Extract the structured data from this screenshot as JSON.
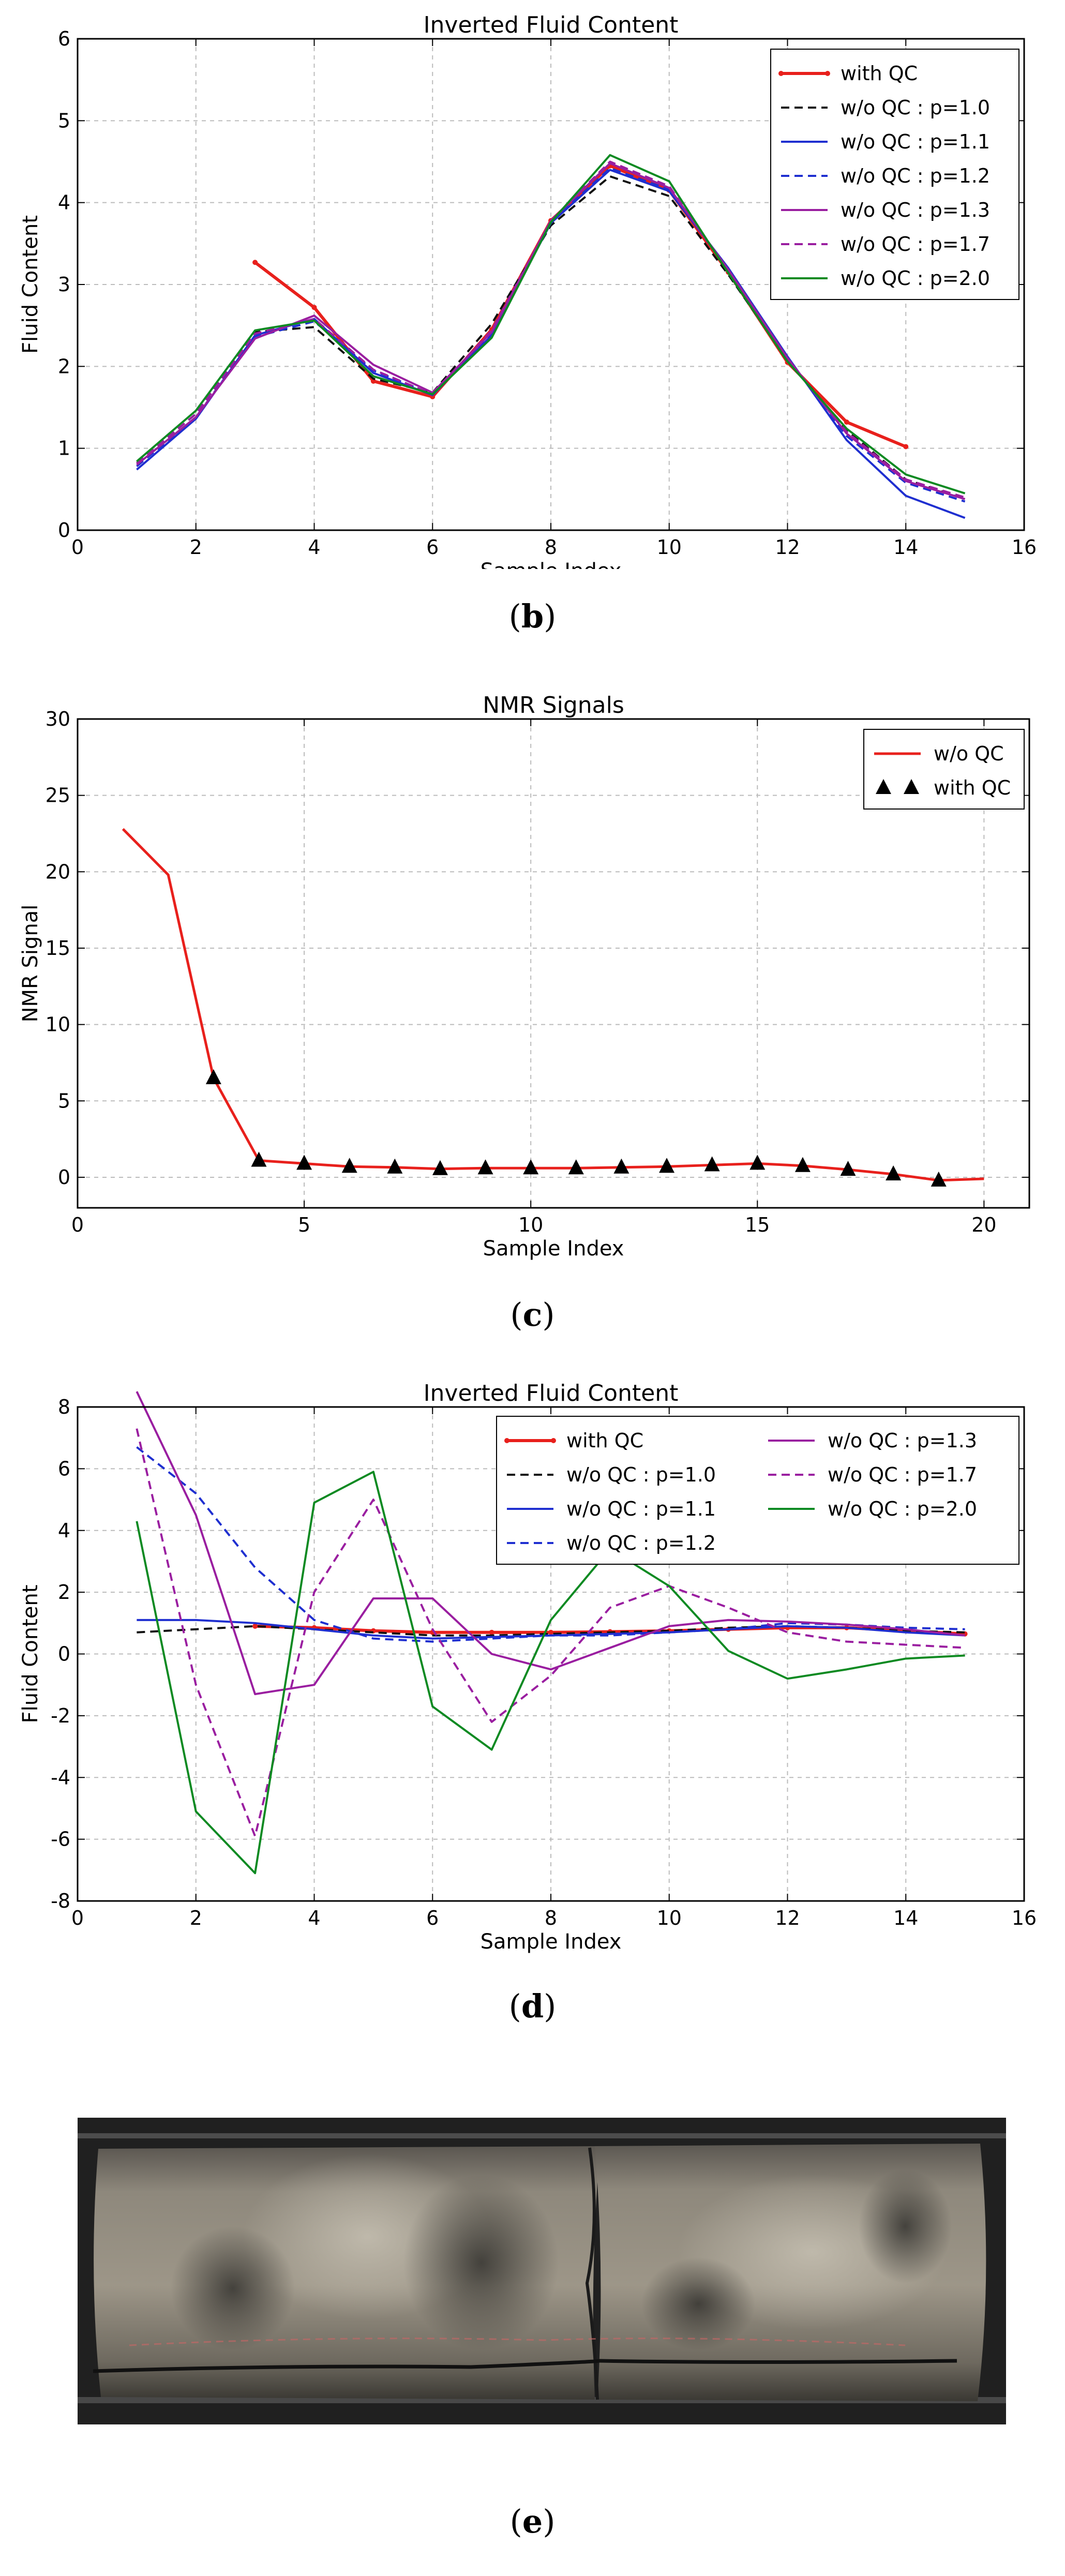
{
  "colors": {
    "red": "#e8201c",
    "black": "#111111",
    "blue": "#1f2fd0",
    "purple": "#9a1ea0",
    "green": "#0d8a22"
  },
  "panels": {
    "b": "b",
    "c": "c",
    "d": "d",
    "e": "e"
  },
  "chart_data": [
    {
      "id": "b",
      "type": "line",
      "title": "Inverted Fluid Content",
      "xlabel": "Sample Index",
      "ylabel": "Fluid Content",
      "xlim": [
        0,
        16
      ],
      "ylim": [
        0,
        6
      ],
      "xticks": [
        0,
        2,
        4,
        6,
        8,
        10,
        12,
        14,
        16
      ],
      "yticks": [
        0,
        1,
        2,
        3,
        4,
        5,
        6
      ],
      "grid": true,
      "legend_position": "top-right",
      "series": [
        {
          "name": "with QC",
          "color": "#e8201c",
          "dash": "solid",
          "marker": "dot",
          "width": 6,
          "x": [
            3,
            4,
            5,
            6,
            7,
            8,
            9,
            10,
            11,
            12,
            13,
            14
          ],
          "y": [
            3.27,
            2.72,
            1.82,
            1.63,
            2.45,
            3.78,
            4.45,
            4.15,
            3.15,
            2.05,
            1.32,
            1.02
          ]
        },
        {
          "name": "w/o QC : p=1.0",
          "color": "#111111",
          "dash": "dashed",
          "width": 4,
          "x": [
            1,
            2,
            3,
            4,
            5,
            6,
            7,
            8,
            9,
            10,
            11,
            12,
            13,
            14,
            15
          ],
          "y": [
            0.82,
            1.42,
            2.42,
            2.48,
            1.85,
            1.68,
            2.52,
            3.72,
            4.32,
            4.08,
            3.12,
            2.08,
            1.22,
            0.62,
            0.38
          ]
        },
        {
          "name": "w/o QC : p=1.1",
          "color": "#1f2fd0",
          "dash": "solid",
          "width": 4,
          "x": [
            1,
            2,
            3,
            4,
            5,
            6,
            7,
            8,
            9,
            10,
            11,
            12,
            13,
            14,
            15
          ],
          "y": [
            0.74,
            1.36,
            2.38,
            2.58,
            1.92,
            1.65,
            2.38,
            3.75,
            4.4,
            4.14,
            3.2,
            2.12,
            1.1,
            0.42,
            0.15
          ]
        },
        {
          "name": "w/o QC : p=1.2",
          "color": "#1f2fd0",
          "dash": "dashed",
          "width": 4,
          "x": [
            1,
            2,
            3,
            4,
            5,
            6,
            7,
            8,
            9,
            10,
            11,
            12,
            13,
            14,
            15
          ],
          "y": [
            0.78,
            1.38,
            2.36,
            2.55,
            1.95,
            1.66,
            2.4,
            3.76,
            4.42,
            4.16,
            3.18,
            2.1,
            1.15,
            0.58,
            0.35
          ]
        },
        {
          "name": "w/o QC : p=1.3",
          "color": "#9a1ea0",
          "dash": "solid",
          "width": 4,
          "x": [
            1,
            2,
            3,
            4,
            5,
            6,
            7,
            8,
            9,
            10,
            11,
            12,
            13,
            14,
            15
          ],
          "y": [
            0.8,
            1.38,
            2.34,
            2.62,
            2.02,
            1.68,
            2.42,
            3.78,
            4.48,
            4.18,
            3.18,
            2.1,
            1.18,
            0.6,
            0.38
          ]
        },
        {
          "name": "w/o QC : p=1.7",
          "color": "#9a1ea0",
          "dash": "dashed",
          "width": 4,
          "x": [
            1,
            2,
            3,
            4,
            5,
            6,
            7,
            8,
            9,
            10,
            11,
            12,
            13,
            14,
            15
          ],
          "y": [
            0.82,
            1.42,
            2.4,
            2.58,
            1.96,
            1.66,
            2.44,
            3.78,
            4.5,
            4.2,
            3.16,
            2.08,
            1.2,
            0.62,
            0.4
          ]
        },
        {
          "name": "w/o QC : p=2.0",
          "color": "#0d8a22",
          "dash": "solid",
          "width": 4,
          "x": [
            1,
            2,
            3,
            4,
            5,
            6,
            7,
            8,
            9,
            10,
            11,
            12,
            13,
            14,
            15
          ],
          "y": [
            0.84,
            1.46,
            2.44,
            2.56,
            1.88,
            1.66,
            2.35,
            3.76,
            4.58,
            4.26,
            3.14,
            2.06,
            1.24,
            0.68,
            0.45
          ]
        }
      ]
    },
    {
      "id": "c",
      "type": "line",
      "title": "NMR Signals",
      "xlabel": "Sample Index",
      "ylabel": "NMR Signal",
      "xlim": [
        0,
        21
      ],
      "ylim": [
        -2,
        30
      ],
      "xticks": [
        0,
        5,
        10,
        15,
        20
      ],
      "yticks": [
        0,
        5,
        10,
        15,
        20,
        25,
        30
      ],
      "grid": true,
      "legend_position": "top-right",
      "series": [
        {
          "name": "w/o QC",
          "color": "#e8201c",
          "dash": "solid",
          "width": 5,
          "x": [
            1,
            2,
            3,
            4,
            5,
            6,
            7,
            8,
            9,
            10,
            11,
            12,
            13,
            14,
            15,
            16,
            17,
            18,
            19,
            20
          ],
          "y": [
            22.8,
            19.8,
            6.5,
            1.1,
            0.9,
            0.7,
            0.65,
            0.55,
            0.6,
            0.6,
            0.6,
            0.65,
            0.7,
            0.8,
            0.9,
            0.75,
            0.5,
            0.2,
            -0.2,
            -0.1
          ]
        },
        {
          "name": "with QC",
          "color": "#000000",
          "style": "markers",
          "marker": "triangle",
          "marker_label_prefix": "▲ ▲",
          "x": [
            3,
            4,
            5,
            6,
            7,
            8,
            9,
            10,
            11,
            12,
            13,
            14,
            15,
            16,
            17,
            18,
            19
          ],
          "y": [
            6.5,
            1.1,
            0.9,
            0.7,
            0.65,
            0.55,
            0.6,
            0.6,
            0.6,
            0.65,
            0.7,
            0.8,
            0.9,
            0.75,
            0.5,
            0.2,
            -0.2
          ]
        }
      ]
    },
    {
      "id": "d",
      "type": "line",
      "title": "Inverted Fluid Content",
      "xlabel": "Sample Index",
      "ylabel": "Fluid Content",
      "xlim": [
        0,
        16
      ],
      "ylim": [
        -8,
        8
      ],
      "xticks": [
        0,
        2,
        4,
        6,
        8,
        10,
        12,
        14,
        16
      ],
      "yticks": [
        -8,
        -6,
        -4,
        -2,
        0,
        2,
        4,
        6,
        8
      ],
      "grid": true,
      "legend_position": "top-right",
      "legend_columns": 2,
      "series": [
        {
          "name": "with QC",
          "color": "#e8201c",
          "dash": "solid",
          "marker": "dot",
          "width": 6,
          "x": [
            3,
            4,
            5,
            6,
            7,
            8,
            9,
            10,
            11,
            12,
            13,
            14,
            15
          ],
          "y": [
            0.9,
            0.85,
            0.75,
            0.7,
            0.7,
            0.7,
            0.72,
            0.75,
            0.8,
            0.85,
            0.85,
            0.75,
            0.65
          ]
        },
        {
          "name": "w/o QC : p=1.0",
          "color": "#111111",
          "dash": "dashed",
          "width": 4,
          "x": [
            1,
            2,
            3,
            4,
            5,
            6,
            7,
            8,
            9,
            10,
            11,
            12,
            13,
            14,
            15
          ],
          "y": [
            0.7,
            0.8,
            0.9,
            0.8,
            0.7,
            0.6,
            0.6,
            0.65,
            0.7,
            0.75,
            0.85,
            0.9,
            0.85,
            0.75,
            0.7
          ]
        },
        {
          "name": "w/o QC : p=1.1",
          "color": "#1f2fd0",
          "dash": "solid",
          "width": 4,
          "x": [
            1,
            2,
            3,
            4,
            5,
            6,
            7,
            8,
            9,
            10,
            11,
            12,
            13,
            14,
            15
          ],
          "y": [
            1.1,
            1.1,
            1.0,
            0.8,
            0.6,
            0.5,
            0.55,
            0.6,
            0.65,
            0.7,
            0.8,
            0.9,
            0.85,
            0.7,
            0.6
          ]
        },
        {
          "name": "w/o QC : p=1.2",
          "color": "#1f2fd0",
          "dash": "dashed",
          "width": 4,
          "x": [
            1,
            2,
            3,
            4,
            5,
            6,
            7,
            8,
            9,
            10,
            11,
            12,
            13,
            14,
            15
          ],
          "y": [
            6.7,
            5.2,
            2.8,
            1.1,
            0.5,
            0.4,
            0.5,
            0.6,
            0.6,
            0.7,
            0.8,
            1.0,
            0.95,
            0.85,
            0.8
          ]
        },
        {
          "name": "w/o QC : p=1.3",
          "color": "#9a1ea0",
          "dash": "solid",
          "width": 4,
          "x": [
            1,
            2,
            3,
            4,
            5,
            6,
            7,
            8,
            9,
            10,
            11,
            12,
            13,
            14,
            15
          ],
          "y": [
            8.5,
            4.5,
            -1.3,
            -1.0,
            1.8,
            1.8,
            0.0,
            -0.5,
            0.2,
            0.9,
            1.1,
            1.05,
            0.95,
            0.8,
            0.6
          ]
        },
        {
          "name": "w/o QC : p=1.7",
          "color": "#9a1ea0",
          "dash": "dashed",
          "width": 4,
          "x": [
            1,
            2,
            3,
            4,
            5,
            6,
            7,
            8,
            9,
            10,
            11,
            12,
            13,
            14,
            15
          ],
          "y": [
            7.3,
            -1.0,
            -5.9,
            2.0,
            5.0,
            0.8,
            -2.2,
            -0.7,
            1.5,
            2.2,
            1.5,
            0.7,
            0.4,
            0.3,
            0.2
          ]
        },
        {
          "name": "w/o QC : p=2.0",
          "color": "#0d8a22",
          "dash": "solid",
          "width": 4,
          "x": [
            1,
            2,
            3,
            4,
            5,
            6,
            7,
            8,
            9,
            10,
            11,
            12,
            13,
            14,
            15
          ],
          "y": [
            4.3,
            -5.1,
            -7.1,
            4.9,
            5.9,
            -1.7,
            -3.1,
            1.1,
            3.4,
            2.2,
            0.1,
            -0.8,
            -0.5,
            -0.15,
            -0.05
          ]
        }
      ]
    }
  ]
}
